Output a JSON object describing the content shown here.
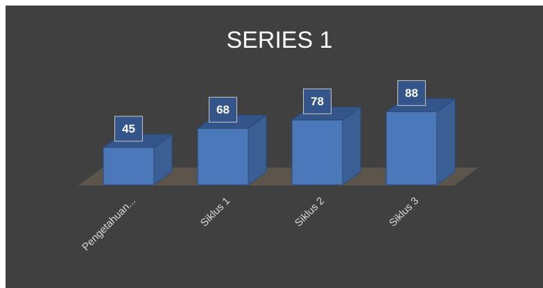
{
  "chart_data": {
    "type": "bar3d",
    "title": "SERIES 1",
    "categories": [
      "Pengetahuan...",
      "Siklus 1",
      "Siklus 2",
      "Siklus 3"
    ],
    "values": [
      45,
      68,
      78,
      88
    ],
    "color": "#4a78b8"
  }
}
